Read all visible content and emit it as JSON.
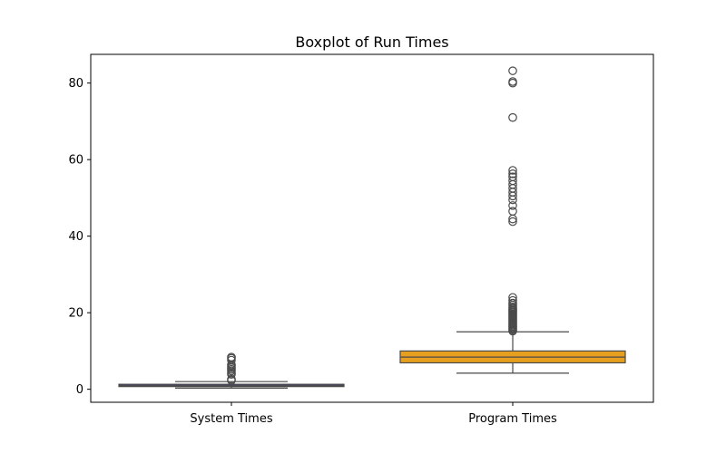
{
  "chart_data": {
    "type": "boxplot",
    "title": "Boxplot of Run Times",
    "xlabel": "",
    "ylabel": "",
    "ylim": [
      -3.4,
      87.5
    ],
    "yticks": [
      0,
      20,
      40,
      60,
      80
    ],
    "grid": false,
    "categories": [
      "System Times",
      "Program Times"
    ],
    "boxes": [
      {
        "category": "System Times",
        "color": "#4b3f8f",
        "whisker_low": 0.3,
        "q1": 0.7,
        "median": 0.95,
        "q3": 1.3,
        "whisker_high": 2.0,
        "outliers": [
          2.3,
          2.6,
          3.9,
          4.3,
          4.8,
          5.2,
          5.6,
          6.0,
          6.4,
          7.6,
          8.1,
          8.4
        ]
      },
      {
        "category": "Program Times",
        "color": "#e69f1e",
        "whisker_low": 4.2,
        "q1": 6.9,
        "median": 8.4,
        "q3": 10.0,
        "whisker_high": 15.0,
        "outliers": [
          15.2,
          15.5,
          15.8,
          16.1,
          16.4,
          16.7,
          17.0,
          17.3,
          17.6,
          17.9,
          18.2,
          18.5,
          18.8,
          19.1,
          19.4,
          19.7,
          20.0,
          20.3,
          20.6,
          20.9,
          21.2,
          21.5,
          22.0,
          22.5,
          23.2,
          24.0,
          43.8,
          44.5,
          46.5,
          48.0,
          49.5,
          50.5,
          51.5,
          52.5,
          53.5,
          54.5,
          55.5,
          56.3,
          57.2,
          71.0,
          80.0,
          80.4,
          83.2
        ]
      }
    ]
  }
}
